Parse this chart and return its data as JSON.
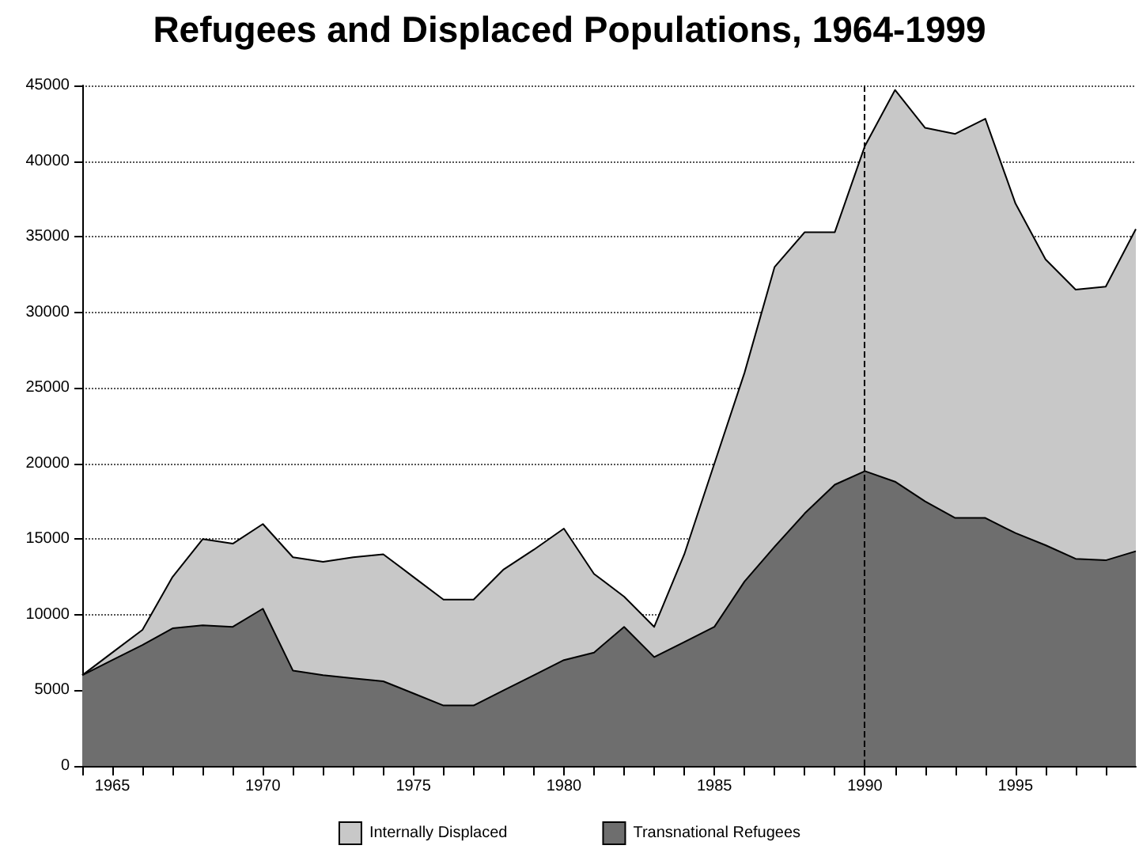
{
  "chart_data": {
    "type": "area",
    "title": "Refugees and Displaced Populations, 1964-1999",
    "stacked": true,
    "x": [
      1964,
      1965,
      1966,
      1967,
      1968,
      1969,
      1970,
      1971,
      1972,
      1973,
      1974,
      1975,
      1976,
      1977,
      1978,
      1979,
      1980,
      1981,
      1982,
      1983,
      1984,
      1985,
      1986,
      1987,
      1988,
      1989,
      1990,
      1991,
      1992,
      1993,
      1994,
      1995,
      1996,
      1997,
      1998,
      1999
    ],
    "series": [
      {
        "name": "Transnational Refugees",
        "color": "#6e6e6e",
        "values": [
          6000,
          7000,
          8000,
          9100,
          9300,
          9200,
          10400,
          6300,
          6000,
          5800,
          5600,
          4800,
          4000,
          4000,
          5000,
          6000,
          7000,
          7500,
          9200,
          7200,
          8200,
          9200,
          12200,
          14500,
          16700,
          18600,
          19500,
          18800,
          17500,
          16400,
          16400,
          15400,
          14600,
          13700,
          13600,
          14200
        ]
      },
      {
        "name": "Internally Displaced",
        "color": "#c8c8c8",
        "values": [
          0,
          500,
          1000,
          3400,
          5700,
          5500,
          5600,
          7500,
          7500,
          8000,
          8400,
          7700,
          7000,
          7000,
          8000,
          8300,
          8700,
          5200,
          2000,
          2000,
          5800,
          10800,
          13800,
          18500,
          18600,
          16700,
          21500,
          25900,
          24700,
          25400,
          26400,
          21800,
          18900,
          17800,
          18100,
          21300
        ]
      }
    ],
    "xlim": [
      1964,
      1999
    ],
    "xticks": [
      {
        "value": 1964,
        "label": null
      },
      1965,
      {
        "value": 1966,
        "label": null
      },
      {
        "value": 1967,
        "label": null
      },
      {
        "value": 1968,
        "label": null
      },
      {
        "value": 1969,
        "label": null
      },
      1970,
      {
        "value": 1971,
        "label": null
      },
      {
        "value": 1972,
        "label": null
      },
      {
        "value": 1973,
        "label": null
      },
      {
        "value": 1974,
        "label": null
      },
      1975,
      {
        "value": 1976,
        "label": null
      },
      {
        "value": 1977,
        "label": null
      },
      {
        "value": 1978,
        "label": null
      },
      {
        "value": 1979,
        "label": null
      },
      1980,
      {
        "value": 1981,
        "label": null
      },
      {
        "value": 1982,
        "label": null
      },
      {
        "value": 1983,
        "label": null
      },
      {
        "value": 1984,
        "label": null
      },
      1985,
      {
        "value": 1986,
        "label": null
      },
      {
        "value": 1987,
        "label": null
      },
      {
        "value": 1988,
        "label": null
      },
      {
        "value": 1989,
        "label": null
      },
      1990,
      {
        "value": 1991,
        "label": null
      },
      {
        "value": 1992,
        "label": null
      },
      {
        "value": 1993,
        "label": null
      },
      {
        "value": 1994,
        "label": null
      },
      1995,
      {
        "value": 1996,
        "label": null
      },
      {
        "value": 1997,
        "label": null
      },
      {
        "value": 1998,
        "label": null
      }
    ],
    "ylim": [
      0,
      45000
    ],
    "yticks": [
      0,
      5000,
      10000,
      15000,
      20000,
      25000,
      30000,
      35000,
      40000,
      45000
    ],
    "grid": "y",
    "legend": "bottom",
    "ref_lines": [
      {
        "axis": "x",
        "value": 1990,
        "color": "#000000",
        "line_style": "dashed"
      }
    ]
  }
}
